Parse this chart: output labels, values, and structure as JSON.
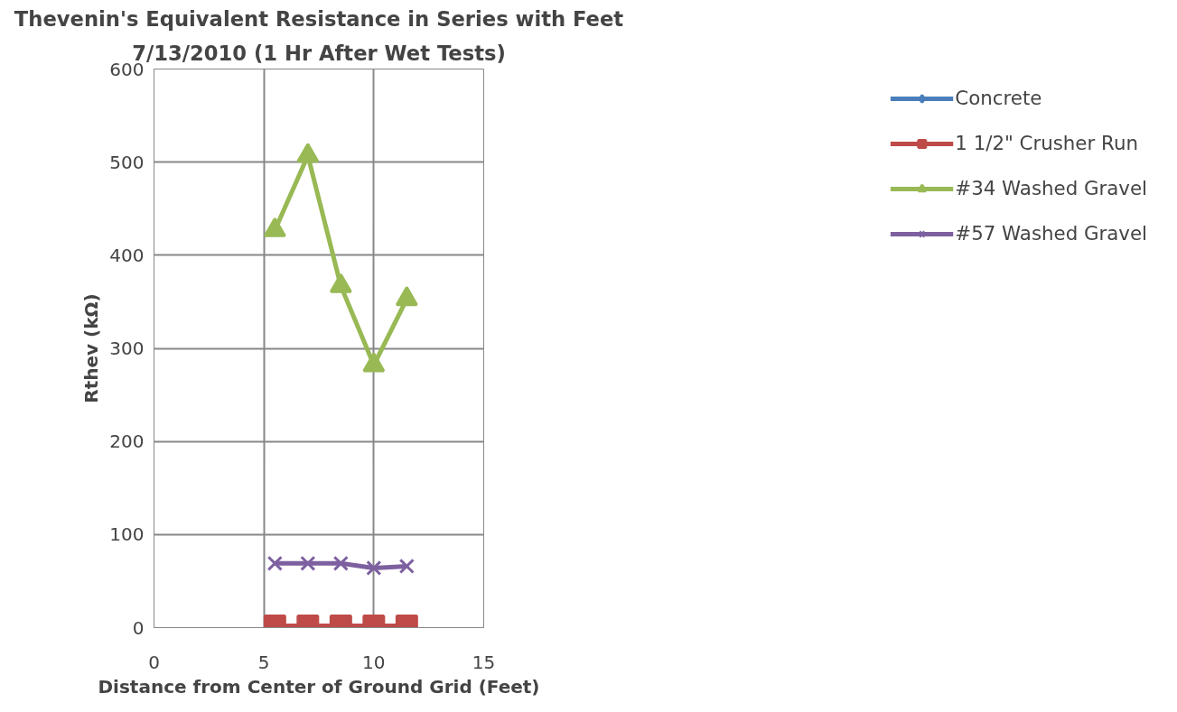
{
  "chart_data": {
    "type": "line",
    "title": "Thevenin's Equivalent Resistance in Series with Feet",
    "subtitle": "7/13/2010 (1 Hr After Wet Tests)",
    "xlabel": "Distance from Center of Ground Grid (Feet)",
    "ylabel": "Rthev (kΩ)",
    "x": [
      5.5,
      7,
      8.5,
      10,
      11.5
    ],
    "series": [
      {
        "name": "Concrete",
        "color": "#4a7ebb",
        "marker": "diamond",
        "values": [
          null,
          null,
          null,
          null,
          null
        ]
      },
      {
        "name": "1 1/2\" Crusher Run",
        "color": "#be4b48",
        "marker": "square",
        "values": [
          2,
          2,
          2,
          2,
          2
        ]
      },
      {
        "name": "#34 Washed Gravel",
        "color": "#98b954",
        "marker": "triangle",
        "values": [
          427,
          507,
          367,
          282,
          353
        ]
      },
      {
        "name": "#57 Washed Gravel",
        "color": "#7d60a0",
        "marker": "x",
        "values": [
          69,
          69,
          69,
          64,
          66
        ]
      }
    ],
    "xlim": [
      0,
      15
    ],
    "xticks": [
      0,
      5,
      10,
      15
    ],
    "ylim": [
      0,
      600
    ],
    "yticks": [
      0,
      100,
      200,
      300,
      400,
      500,
      600
    ],
    "grid": true,
    "legend": "right"
  }
}
